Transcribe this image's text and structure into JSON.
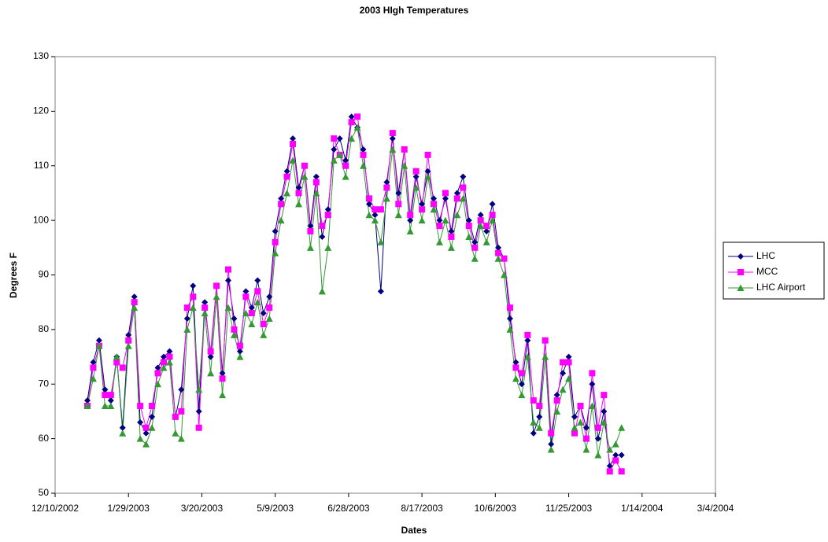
{
  "chart_data": {
    "type": "line",
    "title": "2003 HIgh Temperatures",
    "x_label": "Dates",
    "y_label": "Degrees  F",
    "xlim": [
      "12/10/2002",
      "3/4/2004"
    ],
    "xticks": [
      "12/10/2002",
      "1/29/2003",
      "3/20/2003",
      "5/9/2003",
      "6/28/2003",
      "8/17/2003",
      "10/6/2003",
      "11/25/2003",
      "1/14/2004",
      "3/4/2004"
    ],
    "ylim": [
      50,
      130
    ],
    "yticks": [
      50,
      60,
      70,
      80,
      90,
      100,
      110,
      120,
      130
    ],
    "grid": false,
    "legend": "right",
    "x": [
      "1/1/2003",
      "1/5/2003",
      "1/9/2003",
      "1/13/2003",
      "1/17/2003",
      "1/21/2003",
      "1/25/2003",
      "1/29/2003",
      "2/2/2003",
      "2/6/2003",
      "2/10/2003",
      "2/14/2003",
      "2/18/2003",
      "2/22/2003",
      "2/26/2003",
      "3/2/2003",
      "3/6/2003",
      "3/10/2003",
      "3/14/2003",
      "3/18/2003",
      "3/22/2003",
      "3/26/2003",
      "3/30/2003",
      "4/3/2003",
      "4/7/2003",
      "4/11/2003",
      "4/15/2003",
      "4/19/2003",
      "4/23/2003",
      "4/27/2003",
      "5/1/2003",
      "5/5/2003",
      "5/9/2003",
      "5/13/2003",
      "5/17/2003",
      "5/21/2003",
      "5/25/2003",
      "5/29/2003",
      "6/2/2003",
      "6/6/2003",
      "6/10/2003",
      "6/14/2003",
      "6/18/2003",
      "6/22/2003",
      "6/26/2003",
      "6/30/2003",
      "7/4/2003",
      "7/8/2003",
      "7/12/2003",
      "7/16/2003",
      "7/20/2003",
      "7/24/2003",
      "7/28/2003",
      "8/1/2003",
      "8/5/2003",
      "8/9/2003",
      "8/13/2003",
      "8/17/2003",
      "8/21/2003",
      "8/25/2003",
      "8/29/2003",
      "9/2/2003",
      "9/6/2003",
      "9/10/2003",
      "9/14/2003",
      "9/18/2003",
      "9/22/2003",
      "9/26/2003",
      "9/30/2003",
      "10/4/2003",
      "10/8/2003",
      "10/12/2003",
      "10/16/2003",
      "10/20/2003",
      "10/24/2003",
      "10/28/2003",
      "11/1/2003",
      "11/5/2003",
      "11/9/2003",
      "11/13/2003",
      "11/17/2003",
      "11/21/2003",
      "11/25/2003",
      "11/29/2003",
      "12/3/2003",
      "12/7/2003",
      "12/11/2003",
      "12/15/2003",
      "12/19/2003",
      "12/23/2003",
      "12/27/2003",
      "12/31/2003"
    ],
    "series": [
      {
        "name": "LHC",
        "color": "#000080",
        "marker": "diamond",
        "values": [
          67,
          74,
          78,
          69,
          67,
          75,
          62,
          79,
          86,
          63,
          61,
          64,
          73,
          75,
          76,
          64,
          69,
          82,
          88,
          65,
          85,
          75,
          88,
          72,
          89,
          82,
          76,
          87,
          84,
          89,
          83,
          86,
          98,
          104,
          109,
          115,
          106,
          110,
          99,
          108,
          97,
          102,
          113,
          115,
          111,
          119,
          117,
          113,
          103,
          101,
          87,
          107,
          115,
          105,
          113,
          100,
          108,
          103,
          109,
          104,
          100,
          104,
          98,
          105,
          108,
          100,
          96,
          101,
          98,
          103,
          95,
          93,
          82,
          74,
          70,
          78,
          61,
          64,
          78,
          59,
          68,
          72,
          75,
          64,
          66,
          62,
          70,
          60,
          65,
          55,
          57,
          57
        ]
      },
      {
        "name": "MCC",
        "color": "#ff00ff",
        "marker": "square",
        "values": [
          66,
          73,
          77,
          68,
          68,
          74,
          73,
          78,
          85,
          66,
          62,
          66,
          72,
          74,
          75,
          64,
          65,
          84,
          86,
          62,
          84,
          76,
          88,
          71,
          91,
          80,
          77,
          86,
          83,
          87,
          81,
          84,
          96,
          103,
          108,
          114,
          105,
          110,
          98,
          107,
          99,
          101,
          115,
          112,
          110,
          118,
          119,
          112,
          104,
          102,
          102,
          106,
          116,
          103,
          113,
          101,
          109,
          102,
          112,
          103,
          99,
          105,
          97,
          104,
          106,
          99,
          95,
          100,
          99,
          101,
          94,
          93,
          84,
          73,
          72,
          79,
          67,
          66,
          78,
          61,
          67,
          74,
          74,
          61,
          66,
          60,
          72,
          62,
          68,
          54,
          56,
          54
        ]
      },
      {
        "name": "LHC Airport",
        "color": "#339933",
        "marker": "triangle",
        "values": [
          66,
          71,
          77,
          66,
          66,
          75,
          61,
          77,
          84,
          60,
          59,
          62,
          70,
          73,
          74,
          61,
          60,
          80,
          84,
          69,
          83,
          72,
          86,
          68,
          84,
          79,
          75,
          83,
          81,
          85,
          79,
          82,
          94,
          100,
          105,
          111,
          103,
          108,
          95,
          105,
          87,
          95,
          111,
          112,
          108,
          115,
          117,
          110,
          101,
          100,
          96,
          104,
          113,
          101,
          110,
          98,
          106,
          100,
          108,
          102,
          96,
          100,
          95,
          101,
          104,
          97,
          93,
          99,
          96,
          100,
          93,
          90,
          80,
          71,
          68,
          75,
          63,
          62,
          75,
          58,
          65,
          69,
          71,
          62,
          63,
          58,
          66,
          57,
          63,
          58,
          59,
          62
        ]
      }
    ]
  }
}
